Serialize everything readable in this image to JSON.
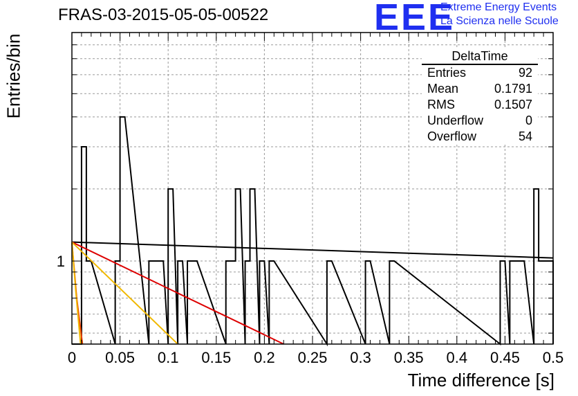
{
  "chart_data": {
    "type": "histogram",
    "title": "FRAS-03-2015-05-05-00522",
    "xlabel": "Time difference [s]",
    "ylabel": "Entries/bin",
    "xlim": [
      0,
      0.5
    ],
    "ylim": [
      0.45,
      9
    ],
    "y_scale": "log",
    "grid": true,
    "bin_width": 0.005,
    "x_ticks": [
      "0",
      "0.05",
      "0.1",
      "0.15",
      "0.2",
      "0.25",
      "0.3",
      "0.35",
      "0.4",
      "0.45",
      "0.5"
    ],
    "y_ticks": [
      "1"
    ],
    "bins": [
      {
        "x": 0.01,
        "count": 3
      },
      {
        "x": 0.015,
        "count": 1
      },
      {
        "x": 0.045,
        "count": 1
      },
      {
        "x": 0.05,
        "count": 4
      },
      {
        "x": 0.08,
        "count": 1
      },
      {
        "x": 0.085,
        "count": 1
      },
      {
        "x": 0.09,
        "count": 1
      },
      {
        "x": 0.1,
        "count": 2
      },
      {
        "x": 0.11,
        "count": 1
      },
      {
        "x": 0.12,
        "count": 1
      },
      {
        "x": 0.125,
        "count": 1
      },
      {
        "x": 0.16,
        "count": 1
      },
      {
        "x": 0.165,
        "count": 1
      },
      {
        "x": 0.17,
        "count": 2
      },
      {
        "x": 0.18,
        "count": 1
      },
      {
        "x": 0.185,
        "count": 2
      },
      {
        "x": 0.195,
        "count": 1
      },
      {
        "x": 0.205,
        "count": 1
      },
      {
        "x": 0.265,
        "count": 1
      },
      {
        "x": 0.305,
        "count": 1
      },
      {
        "x": 0.33,
        "count": 1
      },
      {
        "x": 0.445,
        "count": 1
      },
      {
        "x": 0.455,
        "count": 1
      },
      {
        "x": 0.46,
        "count": 1
      },
      {
        "x": 0.465,
        "count": 1
      },
      {
        "x": 0.48,
        "count": 2
      },
      {
        "x": 0.485,
        "count": 1
      },
      {
        "x": 0.49,
        "count": 1
      },
      {
        "x": 0.495,
        "count": 1
      }
    ],
    "fit_lines": [
      {
        "color": "#000000",
        "points": [
          [
            0,
            1.2
          ],
          [
            0.5,
            1.03
          ]
        ]
      },
      {
        "color": "#dd0000",
        "points": [
          [
            0,
            1.2
          ],
          [
            0.22,
            0.45
          ]
        ]
      },
      {
        "color": "#f0b800",
        "points": [
          [
            0,
            1.2
          ],
          [
            0.11,
            0.45
          ]
        ]
      },
      {
        "color": "#ee4400",
        "points": [
          [
            0,
            1.2
          ],
          [
            0.005,
            0.7
          ],
          [
            0.011,
            0.45
          ]
        ]
      },
      {
        "color": "#f0b800",
        "points": [
          [
            0,
            1.2
          ],
          [
            0.004,
            0.75
          ],
          [
            0.009,
            0.45
          ]
        ]
      }
    ]
  },
  "logo": {
    "text": "EEE",
    "line1": "Extreme Energy Events",
    "line2": "La Scienza nelle Scuole"
  },
  "stats": {
    "title": "DeltaTime",
    "rows": [
      {
        "label": "Entries",
        "value": "92"
      },
      {
        "label": "Mean",
        "value": "0.1791"
      },
      {
        "label": "RMS",
        "value": "0.1507"
      },
      {
        "label": "Underflow",
        "value": "0"
      },
      {
        "label": "Overflow",
        "value": "54"
      }
    ]
  }
}
